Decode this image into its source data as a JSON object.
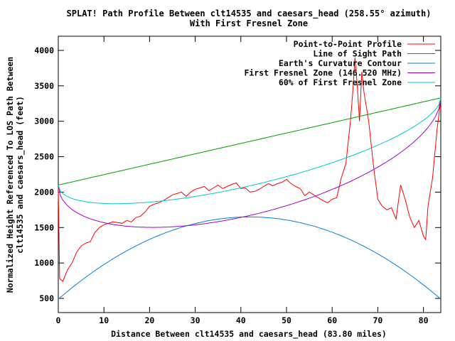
{
  "chart_data": {
    "type": "line",
    "title": "SPLAT! Path Profile Between clt14535 and caesars_head (258.55° azimuth)",
    "subtitle": "With First Fresnel Zone",
    "xlabel": "Distance Between clt14535 and caesars_head (83.80 miles)",
    "ylabel_line1": "Normalized Height Referenced To LOS Path Between",
    "ylabel_line2": "clt14535 and caesars_head (feet)",
    "xlim": [
      0,
      83.8
    ],
    "ylim": [
      300,
      4200
    ],
    "x_ticks": [
      0,
      10,
      20,
      30,
      40,
      50,
      60,
      70,
      80
    ],
    "y_ticks": [
      500,
      1000,
      1500,
      2000,
      2500,
      3000,
      3500,
      4000
    ],
    "grid": false,
    "legend_position": "top-right",
    "series": [
      {
        "name": "Point-to-Point Profile",
        "color": "#ff0000",
        "points": [
          [
            0,
            2070
          ],
          [
            0.3,
            780
          ],
          [
            1,
            740
          ],
          [
            1.5,
            820
          ],
          [
            2,
            900
          ],
          [
            3,
            1000
          ],
          [
            4,
            1150
          ],
          [
            5,
            1240
          ],
          [
            6,
            1280
          ],
          [
            7,
            1300
          ],
          [
            8,
            1430
          ],
          [
            9,
            1500
          ],
          [
            10,
            1540
          ],
          [
            12,
            1580
          ],
          [
            14,
            1560
          ],
          [
            15,
            1600
          ],
          [
            16,
            1580
          ],
          [
            17,
            1640
          ],
          [
            18,
            1660
          ],
          [
            19,
            1720
          ],
          [
            20,
            1800
          ],
          [
            21,
            1830
          ],
          [
            22,
            1850
          ],
          [
            23,
            1880
          ],
          [
            24,
            1920
          ],
          [
            25,
            1960
          ],
          [
            26,
            1980
          ],
          [
            27,
            2000
          ],
          [
            28,
            1940
          ],
          [
            29,
            2000
          ],
          [
            30,
            2040
          ],
          [
            31,
            2060
          ],
          [
            32,
            2080
          ],
          [
            33,
            2020
          ],
          [
            34,
            2060
          ],
          [
            35,
            2100
          ],
          [
            36,
            2050
          ],
          [
            37,
            2080
          ],
          [
            38,
            2110
          ],
          [
            39,
            2130
          ],
          [
            40,
            2050
          ],
          [
            41,
            2060
          ],
          [
            42,
            2000
          ],
          [
            43,
            2010
          ],
          [
            44,
            2040
          ],
          [
            45,
            2080
          ],
          [
            46,
            2120
          ],
          [
            47,
            2090
          ],
          [
            48,
            2120
          ],
          [
            49,
            2140
          ],
          [
            50,
            2180
          ],
          [
            51,
            2120
          ],
          [
            52,
            2080
          ],
          [
            53,
            2050
          ],
          [
            54,
            1950
          ],
          [
            55,
            2000
          ],
          [
            56,
            1960
          ],
          [
            57,
            1920
          ],
          [
            58,
            1880
          ],
          [
            59,
            1850
          ],
          [
            60,
            1900
          ],
          [
            61,
            1920
          ],
          [
            62,
            2200
          ],
          [
            63,
            2400
          ],
          [
            64,
            3000
          ],
          [
            64.5,
            3400
          ],
          [
            65,
            3900
          ],
          [
            65.5,
            3500
          ],
          [
            66,
            3000
          ],
          [
            66.5,
            3700
          ],
          [
            67,
            3400
          ],
          [
            68,
            3000
          ],
          [
            68.5,
            2700
          ],
          [
            69,
            2400
          ],
          [
            70,
            1900
          ],
          [
            71,
            1800
          ],
          [
            72,
            1750
          ],
          [
            73,
            1780
          ],
          [
            74,
            1620
          ],
          [
            75,
            2100
          ],
          [
            76,
            1900
          ],
          [
            77,
            1650
          ],
          [
            78,
            1500
          ],
          [
            79,
            1600
          ],
          [
            80,
            1380
          ],
          [
            80.5,
            1330
          ],
          [
            81,
            1800
          ],
          [
            82,
            2200
          ],
          [
            83,
            2900
          ],
          [
            83.8,
            3300
          ]
        ]
      },
      {
        "name": "Line of Sight Path",
        "color": "#00a000"
      },
      {
        "name": "Earth's Curvature Contour",
        "color": "#0080d0"
      },
      {
        "name": "First Fresnel Zone (146.520 MHz)",
        "color": "#a000c8"
      },
      {
        "name": "60% of First Fresnel Zone",
        "color": "#00c8c8"
      }
    ],
    "reference_values": {
      "los_start": 2100,
      "los_end": 3330,
      "curvature_ends": 490,
      "curvature_max": 1650,
      "fresnel_min": 1670,
      "fresnel60_min": 1915
    }
  }
}
